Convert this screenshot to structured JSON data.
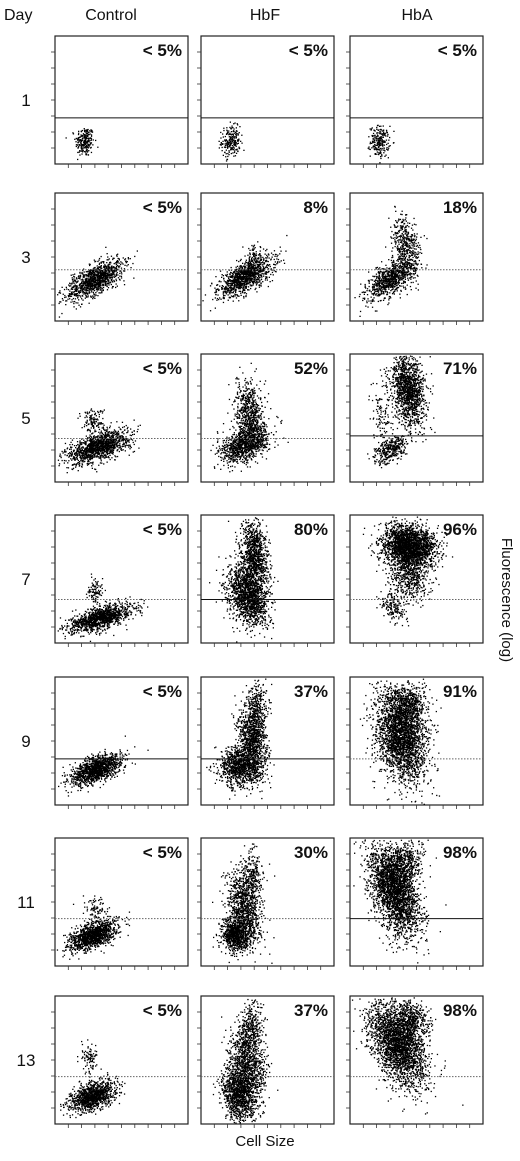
{
  "chart_data": {
    "type": "scatter",
    "corner_label": "Day",
    "columns": [
      "Control",
      "HbF",
      "HbA"
    ],
    "days": [
      "1",
      "3",
      "5",
      "7",
      "9",
      "11",
      "13"
    ],
    "xlabel": "Cell Size",
    "ylabel": "Fluorescence (log)",
    "y_scale": "log",
    "grid": false,
    "percent_positive": [
      [
        "< 5%",
        "< 5%",
        "< 5%"
      ],
      [
        "< 5%",
        "8%",
        "18%"
      ],
      [
        "< 5%",
        "52%",
        "71%"
      ],
      [
        "< 5%",
        "80%",
        "96%"
      ],
      [
        "< 5%",
        "37%",
        "91%"
      ],
      [
        "< 5%",
        "30%",
        "98%"
      ],
      [
        "< 5%",
        "37%",
        "98%"
      ]
    ],
    "gate_level": [
      [
        0.36,
        0.36,
        0.36
      ],
      [
        0.4,
        0.4,
        0.4
      ],
      [
        0.34,
        0.34,
        0.36
      ],
      [
        0.34,
        0.34,
        0.34
      ],
      [
        0.36,
        0.36,
        0.36
      ],
      [
        0.37,
        0.37,
        0.37
      ],
      [
        0.37,
        0.37,
        0.37
      ]
    ],
    "gate_style": [
      [
        "solid",
        "solid",
        "solid"
      ],
      [
        "dotted",
        "dotted",
        "dotted"
      ],
      [
        "dotted",
        "dotted",
        "solid"
      ],
      [
        "dotted",
        "solid",
        "dotted"
      ],
      [
        "solid",
        "solid",
        "dotted"
      ],
      [
        "dotted",
        "dotted",
        "solid"
      ],
      [
        "dotted",
        "dotted",
        "dotted"
      ]
    ],
    "clusters": [
      [
        [
          {
            "cx": 0.22,
            "cy": 0.18,
            "sx": 0.035,
            "sy": 0.06,
            "rot": 0,
            "n": 220
          }
        ],
        [
          {
            "cx": 0.22,
            "cy": 0.18,
            "sx": 0.035,
            "sy": 0.06,
            "rot": 0,
            "n": 220
          }
        ],
        [
          {
            "cx": 0.22,
            "cy": 0.18,
            "sx": 0.035,
            "sy": 0.06,
            "rot": 0,
            "n": 220
          }
        ]
      ],
      [
        [
          {
            "cx": 0.3,
            "cy": 0.33,
            "sx": 0.12,
            "sy": 0.05,
            "rot": 32,
            "n": 1100
          }
        ],
        [
          {
            "cx": 0.33,
            "cy": 0.35,
            "sx": 0.12,
            "sy": 0.05,
            "rot": 32,
            "n": 1100
          },
          {
            "cx": 0.4,
            "cy": 0.5,
            "sx": 0.03,
            "sy": 0.05,
            "rot": 0,
            "n": 80
          }
        ],
        [
          {
            "cx": 0.3,
            "cy": 0.33,
            "sx": 0.1,
            "sy": 0.05,
            "rot": 40,
            "n": 800
          },
          {
            "cx": 0.42,
            "cy": 0.58,
            "sx": 0.05,
            "sy": 0.12,
            "rot": 10,
            "n": 450
          }
        ]
      ],
      [
        [
          {
            "cx": 0.32,
            "cy": 0.28,
            "sx": 0.12,
            "sy": 0.05,
            "rot": 22,
            "n": 1300
          },
          {
            "cx": 0.28,
            "cy": 0.48,
            "sx": 0.04,
            "sy": 0.05,
            "rot": 0,
            "n": 120
          }
        ],
        [
          {
            "cx": 0.33,
            "cy": 0.3,
            "sx": 0.1,
            "sy": 0.06,
            "rot": 35,
            "n": 1000
          },
          {
            "cx": 0.36,
            "cy": 0.55,
            "sx": 0.05,
            "sy": 0.12,
            "rot": 5,
            "n": 600
          }
        ],
        [
          {
            "cx": 0.44,
            "cy": 0.72,
            "sx": 0.06,
            "sy": 0.14,
            "rot": 8,
            "n": 1300
          },
          {
            "cx": 0.3,
            "cy": 0.26,
            "sx": 0.07,
            "sy": 0.04,
            "rot": 35,
            "n": 350
          },
          {
            "cx": 0.25,
            "cy": 0.55,
            "sx": 0.05,
            "sy": 0.15,
            "rot": 0,
            "n": 120
          }
        ]
      ],
      [
        [
          {
            "cx": 0.34,
            "cy": 0.2,
            "sx": 0.12,
            "sy": 0.04,
            "rot": 18,
            "n": 1200
          },
          {
            "cx": 0.3,
            "cy": 0.4,
            "sx": 0.03,
            "sy": 0.06,
            "rot": 0,
            "n": 100
          }
        ],
        [
          {
            "cx": 0.35,
            "cy": 0.38,
            "sx": 0.07,
            "sy": 0.12,
            "rot": 15,
            "n": 1500
          },
          {
            "cx": 0.4,
            "cy": 0.68,
            "sx": 0.05,
            "sy": 0.14,
            "rot": 5,
            "n": 900
          }
        ],
        [
          {
            "cx": 0.44,
            "cy": 0.76,
            "sx": 0.1,
            "sy": 0.08,
            "rot": -10,
            "n": 2300
          },
          {
            "cx": 0.45,
            "cy": 0.52,
            "sx": 0.08,
            "sy": 0.1,
            "rot": 10,
            "n": 500
          },
          {
            "cx": 0.32,
            "cy": 0.28,
            "sx": 0.04,
            "sy": 0.06,
            "rot": 30,
            "n": 150
          }
        ]
      ],
      [
        [
          {
            "cx": 0.3,
            "cy": 0.28,
            "sx": 0.1,
            "sy": 0.045,
            "rot": 25,
            "n": 1300
          }
        ],
        [
          {
            "cx": 0.3,
            "cy": 0.3,
            "sx": 0.08,
            "sy": 0.08,
            "rot": 20,
            "n": 1100
          },
          {
            "cx": 0.38,
            "cy": 0.52,
            "sx": 0.05,
            "sy": 0.12,
            "rot": 10,
            "n": 800
          },
          {
            "cx": 0.42,
            "cy": 0.76,
            "sx": 0.04,
            "sy": 0.1,
            "rot": 0,
            "n": 300
          }
        ],
        [
          {
            "cx": 0.38,
            "cy": 0.55,
            "sx": 0.09,
            "sy": 0.18,
            "rot": 10,
            "n": 2600
          },
          {
            "cx": 0.44,
            "cy": 0.8,
            "sx": 0.07,
            "sy": 0.07,
            "rot": 0,
            "n": 400
          }
        ]
      ],
      [
        [
          {
            "cx": 0.28,
            "cy": 0.24,
            "sx": 0.1,
            "sy": 0.045,
            "rot": 25,
            "n": 1200
          },
          {
            "cx": 0.3,
            "cy": 0.45,
            "sx": 0.04,
            "sy": 0.05,
            "rot": 0,
            "n": 80
          }
        ],
        [
          {
            "cx": 0.26,
            "cy": 0.25,
            "sx": 0.05,
            "sy": 0.07,
            "rot": 10,
            "n": 900
          },
          {
            "cx": 0.33,
            "cy": 0.45,
            "sx": 0.06,
            "sy": 0.14,
            "rot": 10,
            "n": 900
          },
          {
            "cx": 0.38,
            "cy": 0.7,
            "sx": 0.04,
            "sy": 0.1,
            "rot": 0,
            "n": 250
          }
        ],
        [
          {
            "cx": 0.33,
            "cy": 0.6,
            "sx": 0.08,
            "sy": 0.18,
            "rot": 18,
            "n": 2500
          },
          {
            "cx": 0.42,
            "cy": 0.82,
            "sx": 0.07,
            "sy": 0.08,
            "rot": 0,
            "n": 400
          }
        ]
      ],
      [
        [
          {
            "cx": 0.28,
            "cy": 0.22,
            "sx": 0.09,
            "sy": 0.05,
            "rot": 22,
            "n": 1100
          },
          {
            "cx": 0.25,
            "cy": 0.52,
            "sx": 0.03,
            "sy": 0.06,
            "rot": 0,
            "n": 90
          }
        ],
        [
          {
            "cx": 0.28,
            "cy": 0.25,
            "sx": 0.06,
            "sy": 0.1,
            "rot": 10,
            "n": 1200
          },
          {
            "cx": 0.35,
            "cy": 0.5,
            "sx": 0.06,
            "sy": 0.14,
            "rot": 12,
            "n": 900
          },
          {
            "cx": 0.38,
            "cy": 0.76,
            "sx": 0.04,
            "sy": 0.1,
            "rot": 0,
            "n": 300
          }
        ],
        [
          {
            "cx": 0.36,
            "cy": 0.62,
            "sx": 0.09,
            "sy": 0.17,
            "rot": 22,
            "n": 2500
          },
          {
            "cx": 0.46,
            "cy": 0.82,
            "sx": 0.07,
            "sy": 0.07,
            "rot": 0,
            "n": 400
          }
        ]
      ]
    ]
  }
}
